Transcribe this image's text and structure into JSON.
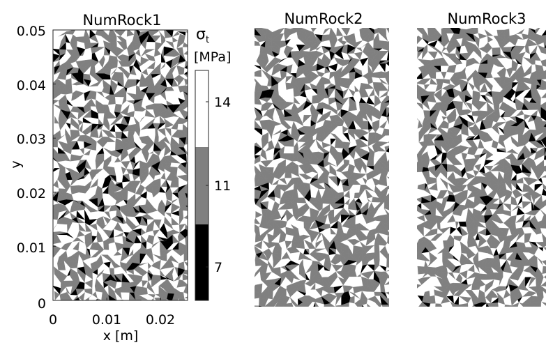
{
  "chart_data": [
    {
      "type": "heatmap",
      "title": "NumRock1",
      "xlabel": "x [m]",
      "ylabel": "y",
      "xlim": [
        0,
        0.025
      ],
      "ylim": [
        0,
        0.05
      ],
      "xticks": [
        "0",
        "0.01",
        "0.02"
      ],
      "yticks": [
        "0",
        "0.01",
        "0.02",
        "0.03",
        "0.04",
        "0.05"
      ],
      "value_fractions": {
        "7": 0.1,
        "11": 0.5,
        "14": 0.4
      },
      "seed": 11
    },
    {
      "type": "heatmap",
      "title": "NumRock2",
      "value_fractions": {
        "7": 0.07,
        "11": 0.6,
        "14": 0.33
      },
      "seed": 23
    },
    {
      "type": "heatmap",
      "title": "NumRock3",
      "value_fractions": {
        "7": 0.08,
        "11": 0.58,
        "14": 0.34
      },
      "seed": 37
    }
  ],
  "colorbar": {
    "symbol": "σ",
    "subscript": "t",
    "unit": "[MPa]",
    "levels": [
      {
        "label": "14",
        "color": "#ffffff"
      },
      {
        "label": "11",
        "color": "#808080"
      },
      {
        "label": "7",
        "color": "#000000"
      }
    ]
  }
}
